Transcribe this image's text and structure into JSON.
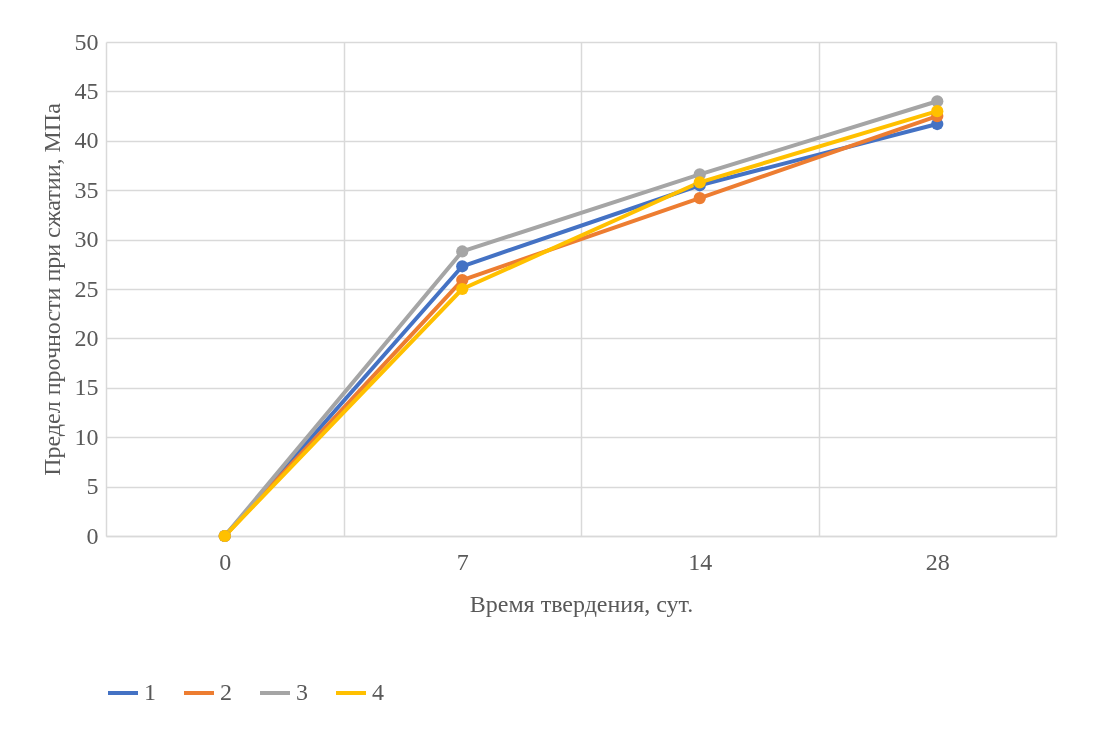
{
  "chart_data": {
    "type": "line",
    "xlabel": "Время твердения, сут.",
    "ylabel": "Предел прочности при сжатии, МПа",
    "categories": [
      "0",
      "7",
      "14",
      "28"
    ],
    "series": [
      {
        "name": "1",
        "color": "#4472c4",
        "values": [
          0,
          27.3,
          35.5,
          41.7
        ]
      },
      {
        "name": "2",
        "color": "#ed7d31",
        "values": [
          0,
          25.9,
          34.2,
          42.5
        ]
      },
      {
        "name": "3",
        "color": "#a5a5a5",
        "values": [
          0,
          28.8,
          36.6,
          44.0
        ]
      },
      {
        "name": "4",
        "color": "#ffc000",
        "values": [
          0,
          25.0,
          35.8,
          43.0
        ]
      }
    ],
    "ylim": [
      0,
      50
    ],
    "yticks": [
      0,
      5,
      10,
      15,
      20,
      25,
      30,
      35,
      40,
      45,
      50
    ],
    "grid": true,
    "legend": "bottom",
    "marker": "circle",
    "line_style": "solid"
  }
}
